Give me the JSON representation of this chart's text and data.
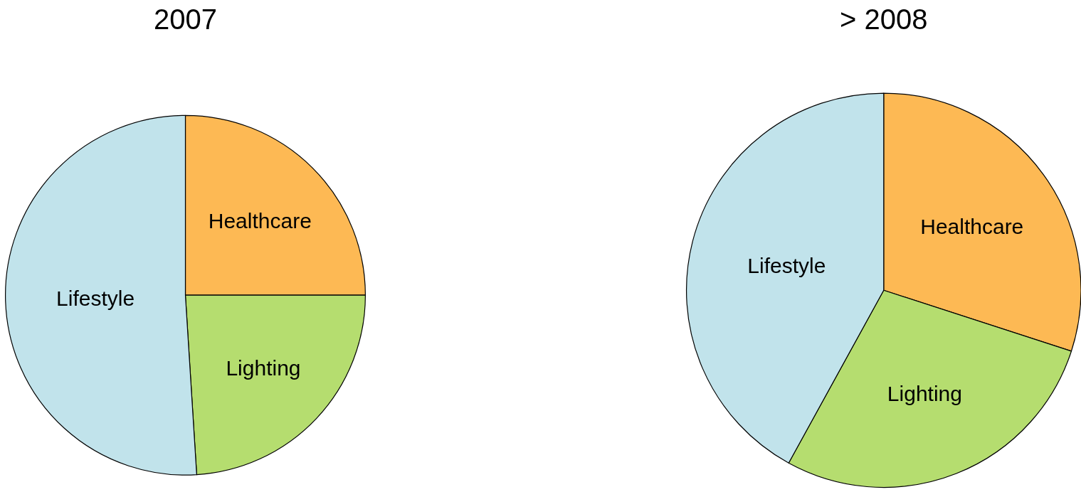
{
  "chart_data": [
    {
      "type": "pie",
      "title": "2007",
      "categories": [
        "Healthcare",
        "Lighting",
        "Lifestyle"
      ],
      "values": [
        25,
        24,
        51
      ],
      "colors": [
        "#fdb954",
        "#b5dd6f",
        "#c1e3eb"
      ],
      "legend": false
    },
    {
      "type": "pie",
      "title": "> 2008",
      "categories": [
        "Healthcare",
        "Lighting",
        "Lifestyle"
      ],
      "values": [
        30,
        28,
        42
      ],
      "colors": [
        "#fdb954",
        "#b5dd6f",
        "#c1e3eb"
      ],
      "legend": false
    }
  ]
}
